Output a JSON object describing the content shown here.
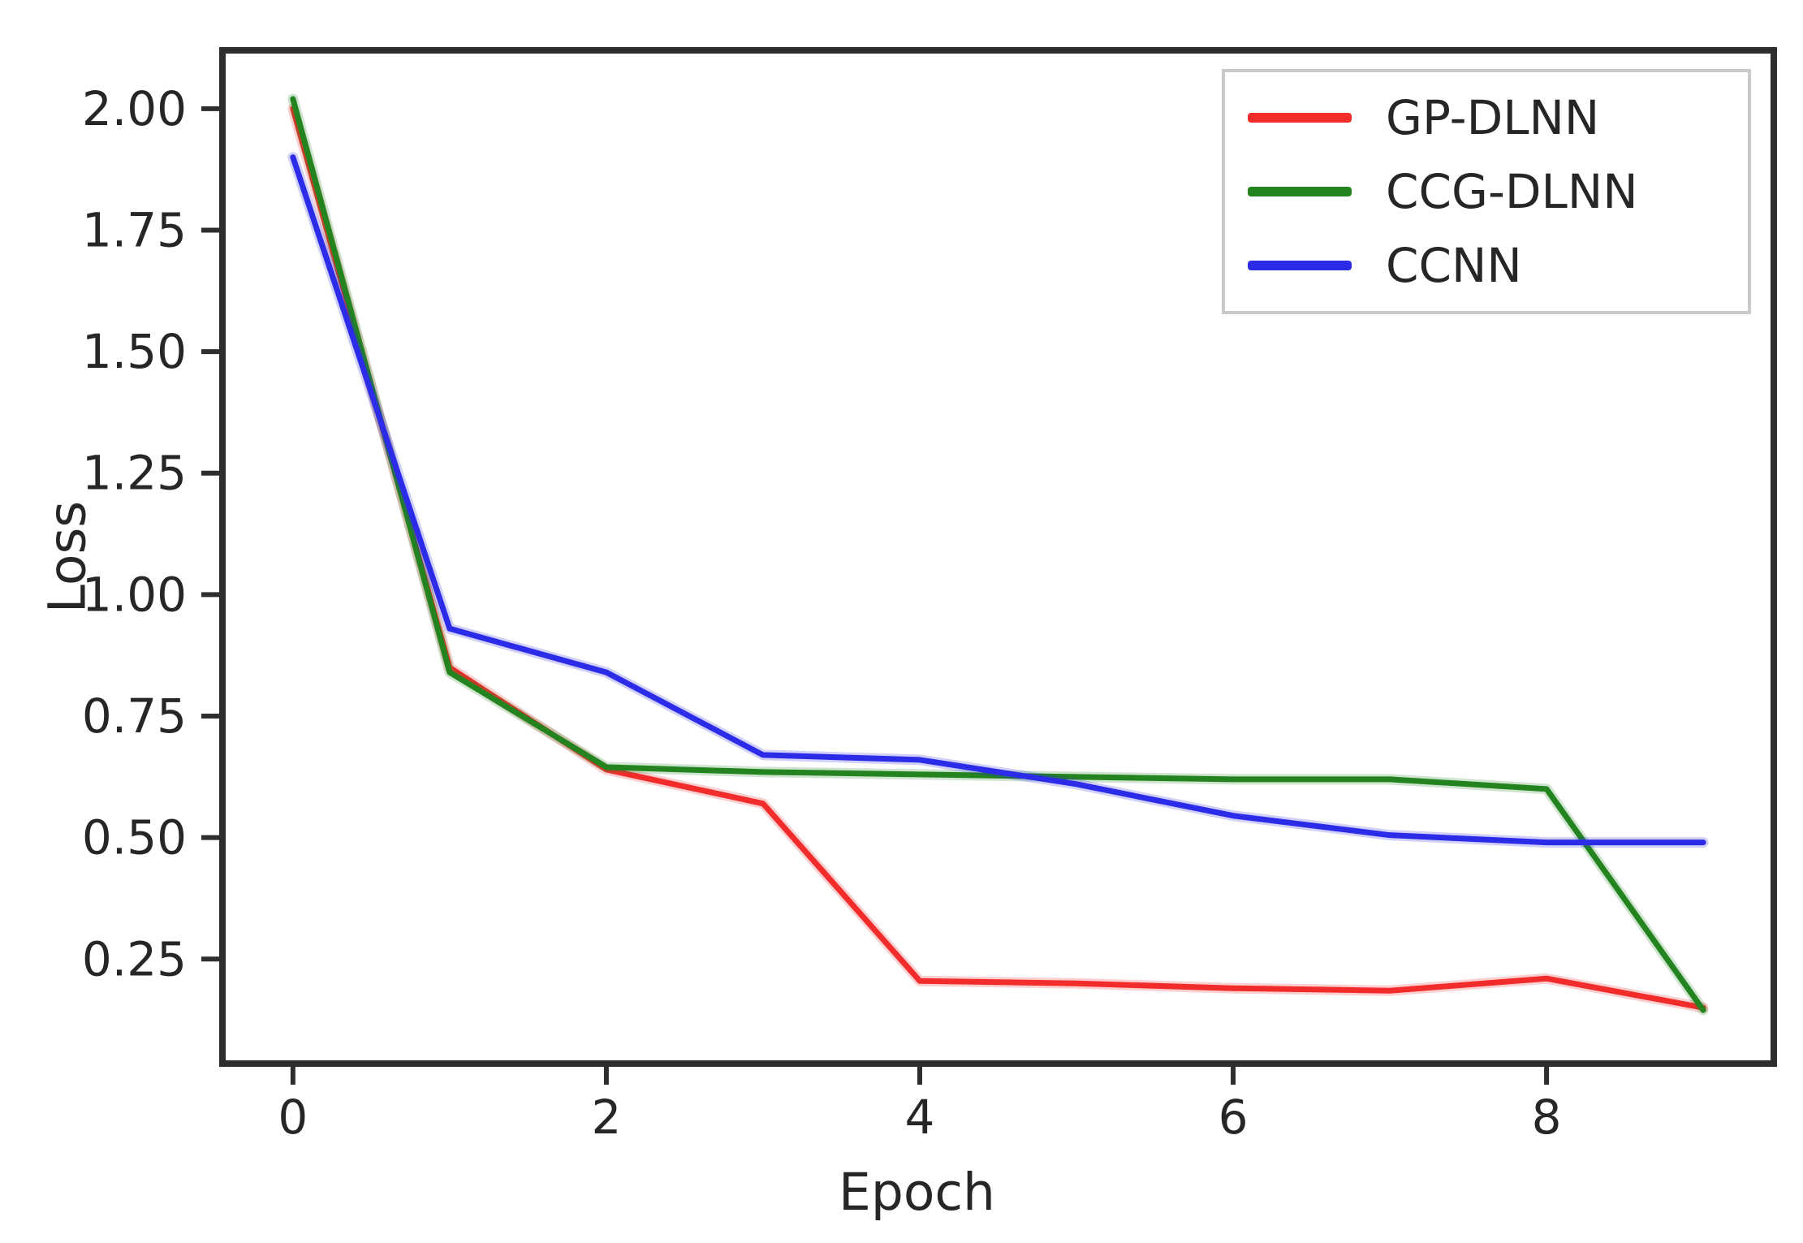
{
  "chart_data": {
    "type": "line",
    "title": "",
    "xlabel": "Epoch",
    "ylabel": "Loss",
    "x": [
      0,
      1,
      2,
      3,
      4,
      5,
      6,
      7,
      8,
      9
    ],
    "series": [
      {
        "name": "GP-DLNN",
        "color": "#f22b2b",
        "values": [
          2.0,
          0.85,
          0.64,
          0.57,
          0.205,
          0.2,
          0.19,
          0.185,
          0.21,
          0.15
        ]
      },
      {
        "name": "CCG-DLNN",
        "color": "#23831f",
        "values": [
          2.02,
          0.84,
          0.645,
          0.635,
          0.63,
          0.625,
          0.62,
          0.62,
          0.6,
          0.145
        ]
      },
      {
        "name": "CCNN",
        "color": "#2b2be8",
        "values": [
          1.9,
          0.93,
          0.84,
          0.67,
          0.66,
          0.61,
          0.545,
          0.505,
          0.49,
          0.49
        ]
      }
    ],
    "xlim": [
      -0.45,
      9.45
    ],
    "ylim": [
      0.035,
      2.12
    ],
    "x_ticks": {
      "values": [
        0,
        2,
        4,
        6,
        8
      ],
      "labels": [
        "0",
        "2",
        "4",
        "6",
        "8"
      ]
    },
    "y_ticks": {
      "values": [
        0.25,
        0.5,
        0.75,
        1.0,
        1.25,
        1.5,
        1.75,
        2.0
      ],
      "labels": [
        "0.25",
        "0.50",
        "0.75",
        "1.00",
        "1.25",
        "1.50",
        "1.75",
        "2.00"
      ]
    },
    "grid": false,
    "legend_position": "upper right",
    "axis_color": "#2e2e2e",
    "tick_label_color": "#262626",
    "tick_font_size": 58,
    "line_width": 7
  }
}
